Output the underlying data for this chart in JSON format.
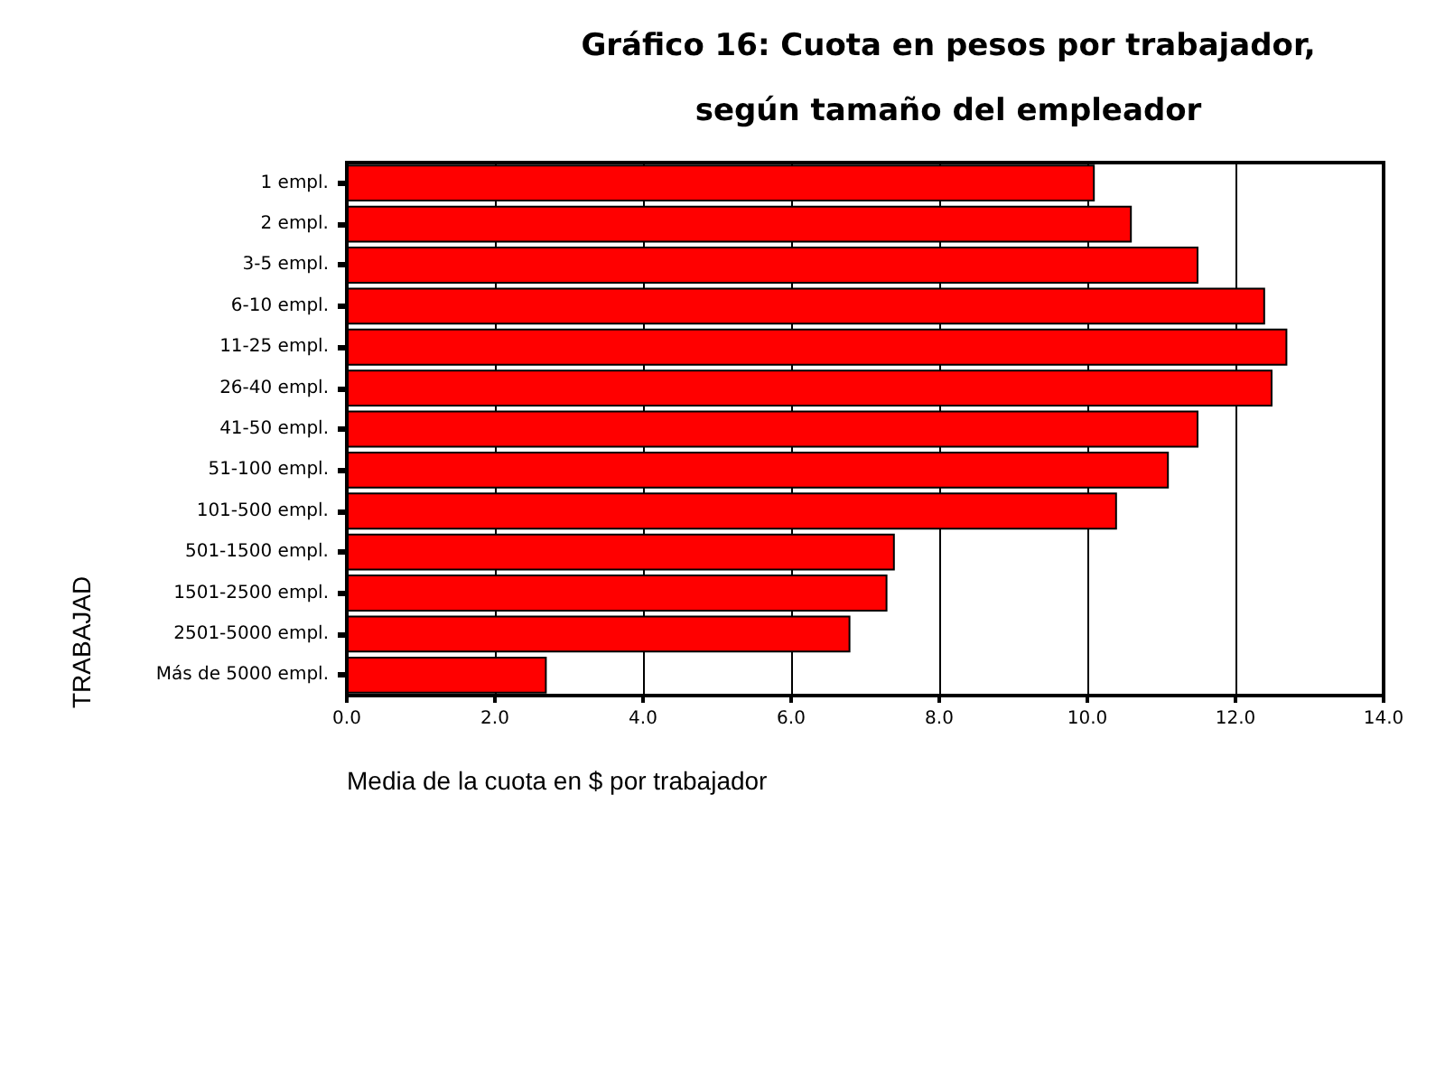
{
  "chart_data": {
    "type": "bar",
    "orientation": "horizontal",
    "title": "Gráfico 16: Cuota en pesos por trabajador,\nsegún tamaño del empleador",
    "xlabel": "Media de la cuota en $ por trabajador",
    "ylabel": "TRABAJAD",
    "categories": [
      "1 empl.",
      "2 empl.",
      "3-5 empl.",
      "6-10 empl.",
      "11-25 empl.",
      "26-40 empl.",
      "41-50 empl.",
      "51-100 empl.",
      "101-500 empl.",
      "501-1500 empl.",
      "1501-2500 empl.",
      "2501-5000 empl.",
      "Más de 5000 empl."
    ],
    "values": [
      10.1,
      10.6,
      11.5,
      12.4,
      12.7,
      12.5,
      11.5,
      11.1,
      10.4,
      7.4,
      7.3,
      6.8,
      2.7
    ],
    "color": "#ff0000",
    "xlim": [
      0,
      14
    ],
    "xticks": [
      {
        "value": 0,
        "label": "0.0"
      },
      {
        "value": 2,
        "label": "2.0"
      },
      {
        "value": 4,
        "label": "4.0"
      },
      {
        "value": 6,
        "label": "6.0"
      },
      {
        "value": 8,
        "label": "8.0"
      },
      {
        "value": 10,
        "label": "10.0"
      },
      {
        "value": 12,
        "label": "12.0"
      },
      {
        "value": 14,
        "label": "14.0"
      }
    ],
    "grid": "x"
  }
}
